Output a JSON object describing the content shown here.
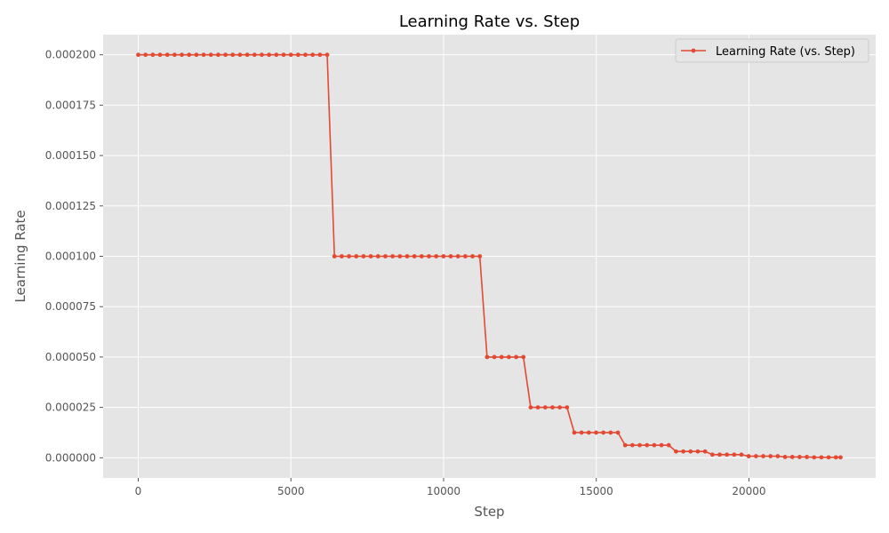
{
  "chart_data": {
    "type": "line",
    "title": "Learning Rate vs. Step",
    "xlabel": "Step",
    "ylabel": "Learning Rate",
    "xlim": [
      -1150,
      24150
    ],
    "ylim": [
      -1e-05,
      0.00021
    ],
    "x_ticks": [
      0,
      5000,
      10000,
      15000,
      20000
    ],
    "x_tick_labels": [
      "0",
      "5000",
      "10000",
      "15000",
      "20000"
    ],
    "y_ticks": [
      0,
      2.5e-05,
      5e-05,
      7.5e-05,
      0.0001,
      0.000125,
      0.00015,
      0.000175,
      0.0002
    ],
    "y_tick_labels": [
      "0.000000",
      "0.000025",
      "0.000050",
      "0.000075",
      "0.000100",
      "0.000125",
      "0.000150",
      "0.000175",
      "0.000200"
    ],
    "grid": true,
    "legend_position": "top-right",
    "colors": {
      "background": "#e5e5e5",
      "grid": "#ffffff",
      "series": "#e24a33"
    },
    "series": [
      {
        "name": "Learning Rate (vs. Step)",
        "x": [
          0,
          238,
          476,
          714,
          952,
          1190,
          1428,
          1666,
          1904,
          2142,
          2380,
          2618,
          2856,
          3094,
          3332,
          3570,
          3808,
          4046,
          4284,
          4522,
          4760,
          4998,
          5236,
          5474,
          5712,
          5950,
          6188,
          6426,
          6664,
          6902,
          7140,
          7378,
          7616,
          7854,
          8092,
          8330,
          8568,
          8806,
          9044,
          9282,
          9520,
          9758,
          9996,
          10234,
          10472,
          10710,
          10948,
          11186,
          11424,
          11662,
          11900,
          12138,
          12376,
          12614,
          12852,
          13090,
          13328,
          13566,
          13804,
          14042,
          14280,
          14518,
          14756,
          14994,
          15232,
          15470,
          15708,
          15946,
          16184,
          16422,
          16660,
          16898,
          17136,
          17374,
          17612,
          17850,
          18088,
          18326,
          18564,
          18802,
          19040,
          19278,
          19516,
          19754,
          19992,
          20230,
          20468,
          20706,
          20944,
          21182,
          21420,
          21658,
          21896,
          22134,
          22372,
          22610,
          22848,
          23000
        ],
        "y": [
          0.0002,
          0.0002,
          0.0002,
          0.0002,
          0.0002,
          0.0002,
          0.0002,
          0.0002,
          0.0002,
          0.0002,
          0.0002,
          0.0002,
          0.0002,
          0.0002,
          0.0002,
          0.0002,
          0.0002,
          0.0002,
          0.0002,
          0.0002,
          0.0002,
          0.0002,
          0.0002,
          0.0002,
          0.0002,
          0.0002,
          0.0002,
          0.0001,
          0.0001,
          0.0001,
          0.0001,
          0.0001,
          0.0001,
          0.0001,
          0.0001,
          0.0001,
          0.0001,
          0.0001,
          0.0001,
          0.0001,
          0.0001,
          0.0001,
          0.0001,
          0.0001,
          0.0001,
          0.0001,
          0.0001,
          0.0001,
          5e-05,
          5e-05,
          5e-05,
          5e-05,
          5e-05,
          5e-05,
          2.5e-05,
          2.5e-05,
          2.5e-05,
          2.5e-05,
          2.5e-05,
          2.5e-05,
          1.25e-05,
          1.25e-05,
          1.25e-05,
          1.25e-05,
          1.25e-05,
          1.25e-05,
          1.25e-05,
          6.25e-06,
          6.25e-06,
          6.25e-06,
          6.25e-06,
          6.25e-06,
          6.25e-06,
          6.25e-06,
          3.125e-06,
          3.125e-06,
          3.125e-06,
          3.125e-06,
          3.125e-06,
          1.5625e-06,
          1.5625e-06,
          1.5625e-06,
          1.5625e-06,
          1.5625e-06,
          7.8e-07,
          7.8e-07,
          7.8e-07,
          7.8e-07,
          7.8e-07,
          3.9e-07,
          3.9e-07,
          3.9e-07,
          3.9e-07,
          2e-07,
          2e-07,
          2e-07,
          2e-07,
          2e-07
        ]
      }
    ]
  }
}
